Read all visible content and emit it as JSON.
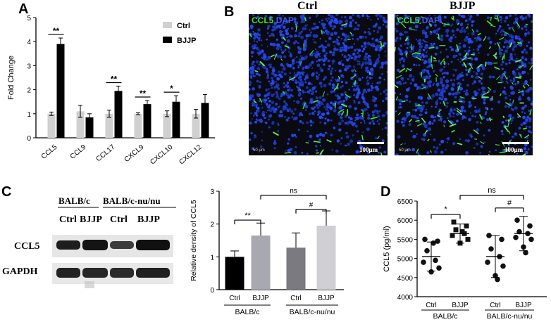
{
  "panels": {
    "a": "A",
    "b": "B",
    "c": "C",
    "d": "D"
  },
  "colors": {
    "ctrl": "#d0d0d0",
    "bjjp": "#000000",
    "c_balb_ctrl": "#000000",
    "c_balb_bjjp": "#a8a8b0",
    "c_nu_ctrl": "#7a7a80",
    "c_nu_bjjp": "#d0d0d4",
    "dapi": "#3d5bff",
    "ccl5": "#35e235"
  },
  "panel_b": {
    "ctrl_title": "Ctrl",
    "bjjp_title": "BJJP",
    "stain_ccl5": "CCL5",
    "stain_dapi": "DAPI",
    "scale_label": "100μm",
    "small_scale_label": "50 μm"
  },
  "panel_c_blot": {
    "group1": "BALB/c",
    "group2": "BALB/c-nu/nu",
    "lanes": [
      "Ctrl",
      "BJJP",
      "Ctrl",
      "BJJP"
    ],
    "row1": "CCL5",
    "row2": "GAPDH"
  },
  "chart_data": [
    {
      "id": "A",
      "type": "bar",
      "xlabel": "",
      "ylabel": "Fold Change",
      "ylim": [
        0,
        5
      ],
      "yticks": [
        0,
        1,
        2,
        3,
        4,
        5
      ],
      "categories": [
        "CCL5",
        "CCL9",
        "CCL17",
        "CXCL9",
        "CXCL10",
        "CXCL12"
      ],
      "series": [
        {
          "name": "Ctrl",
          "values": [
            1.0,
            1.1,
            1.0,
            1.0,
            1.0,
            1.0
          ],
          "errors": [
            0.07,
            0.25,
            0.15,
            0.04,
            0.12,
            0.18
          ]
        },
        {
          "name": "BJJP",
          "values": [
            3.9,
            0.85,
            1.95,
            1.4,
            1.5,
            1.45
          ],
          "errors": [
            0.25,
            0.15,
            0.2,
            0.15,
            0.25,
            0.35
          ]
        }
      ],
      "annotations": [
        {
          "category": "CCL5",
          "text": "**"
        },
        {
          "category": "CCL17",
          "text": "**"
        },
        {
          "category": "CXCL9",
          "text": "**"
        },
        {
          "category": "CXCL10",
          "text": "*"
        }
      ],
      "legend": "top-right"
    },
    {
      "id": "C",
      "type": "bar",
      "ylabel": "Relative density of CCL5",
      "ylim": [
        0,
        3
      ],
      "yticks": [
        0,
        1,
        2,
        3
      ],
      "categories": [
        "Ctrl",
        "BJJP",
        "Ctrl",
        "BJJP"
      ],
      "groups": [
        "BALB/c",
        "BALB/c-nu/nu"
      ],
      "values": [
        1.0,
        1.65,
        1.28,
        1.95
      ],
      "errors": [
        0.18,
        0.38,
        0.45,
        0.45
      ],
      "annotations": [
        {
          "between": [
            0,
            1
          ],
          "text": "**"
        },
        {
          "between": [
            2,
            3
          ],
          "text": "#"
        },
        {
          "between": [
            1,
            3
          ],
          "text": "ns"
        }
      ]
    },
    {
      "id": "D",
      "type": "scatter",
      "ylabel": "CCL5 (pg/ml)",
      "ylim": [
        4000,
        6500
      ],
      "yticks": [
        4000,
        4500,
        5000,
        5500,
        6000,
        6500
      ],
      "categories": [
        "Ctrl",
        "BJJP",
        "Ctrl",
        "BJJP"
      ],
      "groups": [
        "BALB/c",
        "BALB/c-nu/nu"
      ],
      "markers": [
        "circle",
        "square",
        "circle",
        "circle"
      ],
      "points": [
        [
          5500,
          5450,
          5200,
          4950,
          4900,
          4750,
          4650,
          5400
        ],
        [
          5950,
          5850,
          5750,
          5650,
          5600,
          5500,
          5400,
          5700
        ],
        [
          5600,
          5500,
          5250,
          5050,
          4900,
          4800,
          4550,
          4450
        ],
        [
          6000,
          5850,
          5700,
          5650,
          5550,
          5500,
          5300,
          5150
        ]
      ],
      "means": [
        5050,
        5650,
        5050,
        5650
      ],
      "sds": [
        380,
        250,
        550,
        450
      ],
      "annotations": [
        {
          "between": [
            0,
            1
          ],
          "text": "*"
        },
        {
          "between": [
            2,
            3
          ],
          "text": "#"
        },
        {
          "between": [
            1,
            3
          ],
          "text": "ns"
        }
      ]
    }
  ]
}
